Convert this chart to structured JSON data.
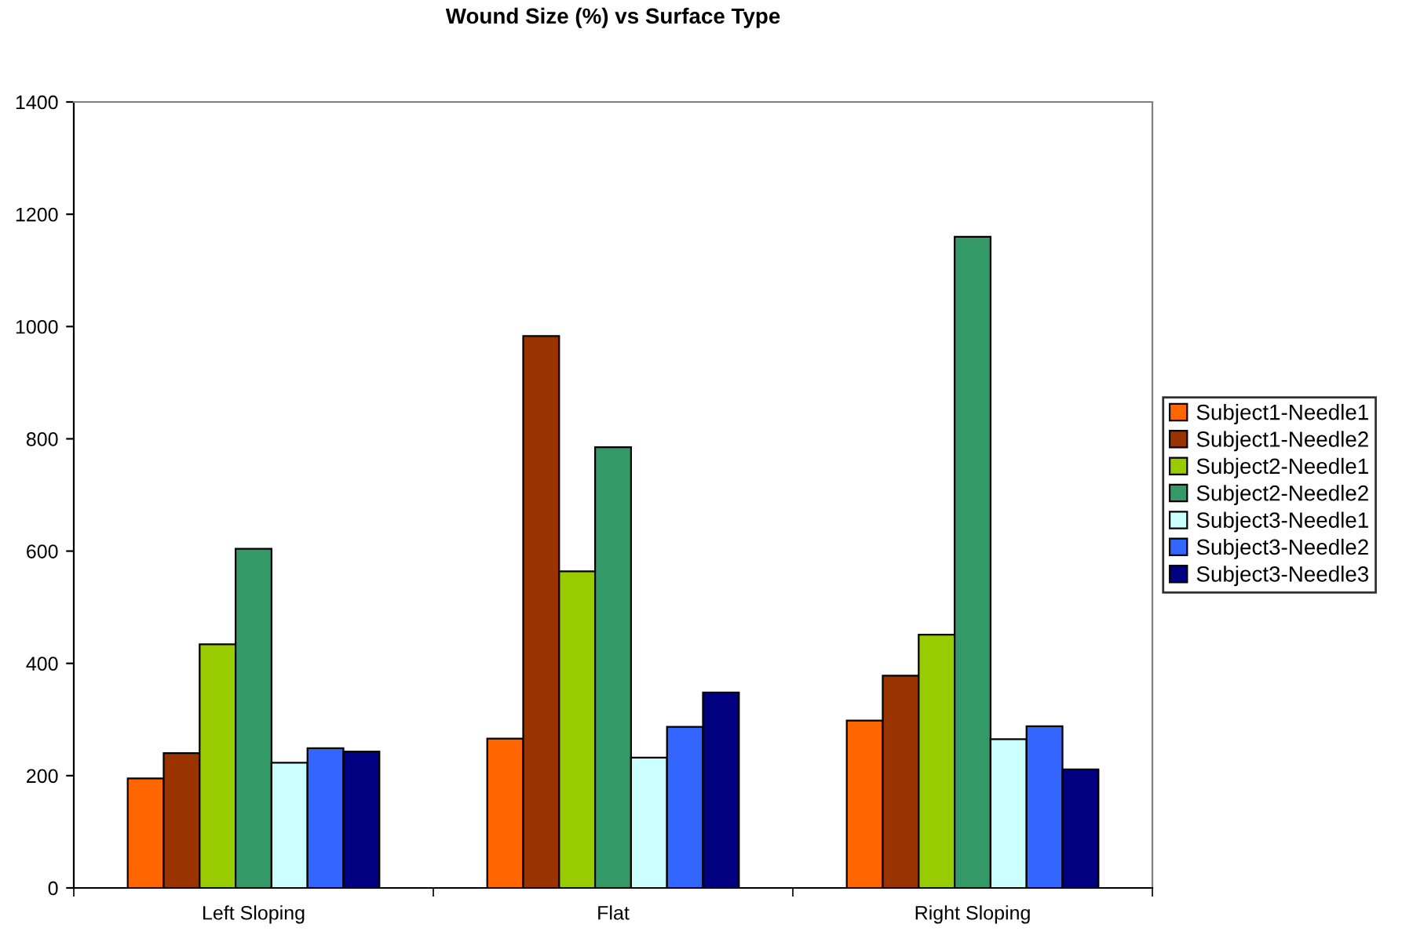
{
  "chart_data": {
    "type": "bar",
    "title": "Wound Size (%) vs Surface Type",
    "categories": [
      "Left Sloping",
      "Flat",
      "Right Sloping"
    ],
    "series": [
      {
        "name": "Subject1-Needle1",
        "color": "#ff6600",
        "values": [
          195,
          266,
          298
        ]
      },
      {
        "name": "Subject1-Needle2",
        "color": "#993300",
        "values": [
          240,
          983,
          378
        ]
      },
      {
        "name": "Subject2-Needle1",
        "color": "#99cc00",
        "values": [
          434,
          564,
          451
        ]
      },
      {
        "name": "Subject2-Needle2",
        "color": "#339966",
        "values": [
          604,
          785,
          1160
        ]
      },
      {
        "name": "Subject3-Needle1",
        "color": "#ccffff",
        "values": [
          223,
          232,
          265
        ]
      },
      {
        "name": "Subject3-Needle2",
        "color": "#3366ff",
        "values": [
          249,
          287,
          288
        ]
      },
      {
        "name": "Subject3-Needle3",
        "color": "#000080",
        "values": [
          243,
          348,
          211
        ]
      }
    ],
    "ylim": [
      0,
      1400
    ],
    "yticks": [
      0,
      200,
      400,
      600,
      800,
      1000,
      1200,
      1400
    ],
    "grid": false,
    "legend": "right"
  }
}
